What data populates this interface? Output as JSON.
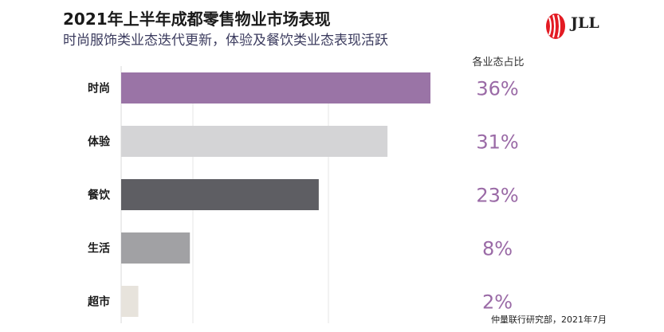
{
  "header": {
    "title": "2021年上半年成都零售物业市场表现",
    "subtitle": "时尚服饰类业态迭代更新，体验及餐饮类业态表现活跃",
    "logo_text": "JLL"
  },
  "chart_data": {
    "type": "bar",
    "orientation": "horizontal",
    "categories": [
      "时尚",
      "体验",
      "餐饮",
      "生活",
      "超市"
    ],
    "values": [
      36,
      31,
      23,
      8,
      2
    ],
    "value_labels": [
      "36%",
      "31%",
      "23%",
      "8%",
      "2%"
    ],
    "value_column_header": "各业态占比",
    "colors": [
      "#9a74a6",
      "#d4d4d6",
      "#5e5e63",
      "#a1a1a4",
      "#e7e3dc"
    ],
    "value_label_color": "#9a6aa6",
    "xlim": [
      0,
      36
    ],
    "grid": true
  },
  "footer": {
    "source": "仲量联行研究部，2021年7月"
  }
}
